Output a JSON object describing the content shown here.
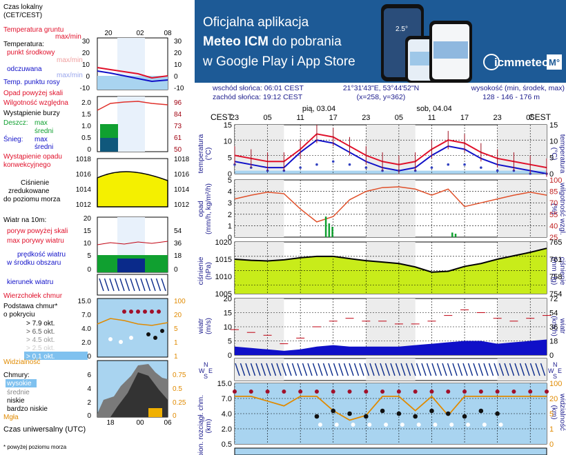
{
  "legend": {
    "czas_lokalny": [
      "Czas lokalny",
      "(CET/CEST)"
    ],
    "top_ticks": [
      "20",
      "02",
      "08"
    ],
    "temp": {
      "grunt": [
        "Temperatura gruntu",
        "max/min"
      ],
      "temperatura": "Temperatura:",
      "punkt": "punkt środkowy",
      "max": "max/min",
      "odczuwana": "odczuwana",
      "max2": "max/min",
      "rosy": "Temp. punktu rosy",
      "yticks": [
        "30",
        "20",
        "10",
        "0",
        "-10"
      ]
    },
    "precip": {
      "opad": "Opad powyżej skali",
      "wilg": "Wilgotność względna",
      "burza": "Wystąpienie burzy",
      "deszcz": "Deszcz:",
      "max": "max",
      "sredni": "średni",
      "snieg": "Śnieg:",
      "max2": "max",
      "sredni2": "średni",
      "konw": [
        "Wystąpienie opadu",
        "konwekcyjnego"
      ],
      "yticks": [
        "2.0",
        "1.5",
        "1.0",
        "0.5",
        "0"
      ],
      "ryticks": [
        "96",
        "84",
        "73",
        "61",
        "50"
      ]
    },
    "pressure": {
      "label": [
        "Ciśnienie",
        "zredukowane",
        "do poziomu morza"
      ],
      "yticks": [
        "1018",
        "1016",
        "1014",
        "1012"
      ]
    },
    "wind": {
      "label": "Wiatr na 10m:",
      "poryw": "poryw powyżej skali",
      "max": "max porywy wiatru",
      "predkosc": [
        "prędkość wiatru",
        "w środku obszaru"
      ],
      "yticks": [
        "20",
        "15",
        "10",
        "5",
        "0"
      ],
      "ryticks": [
        "72",
        "54",
        "36",
        "18",
        "0"
      ]
    },
    "kierunek": "kierunek wiatru",
    "clouds": {
      "wierzcholek": "Wierzchołek chmur",
      "podstawa": [
        "Podstawa chmur*",
        "o pokryciu"
      ],
      "okt": [
        "> 7.9 okt.",
        "> 6.5 okt.",
        "> 4.5 okt.",
        "> 2.5 okt.",
        "> 0.1 okt."
      ],
      "yticks": [
        "15.0",
        "7.0",
        "4.0",
        "2.0",
        "0.5"
      ],
      "ryticks": [
        "100",
        "20",
        "5",
        "1",
        "0"
      ],
      "widzialnosc": "Widzialność",
      "wid_low": "0",
      "wid_top_right": "1"
    },
    "cloudcover": {
      "chmury": "Chmury:",
      "wysokie": "wysokie",
      "srednie": "średnie",
      "niskie": "niskie",
      "bardzo": "bardzo niskie",
      "mgla": "Mgła",
      "yticks": [
        "6",
        "4",
        "2",
        "0"
      ],
      "ryticks": [
        "0.75",
        "0.5",
        "0.25",
        "0"
      ]
    },
    "utc": "Czas uniwersalny (UTC)",
    "utc_ticks": [
      "18",
      "00",
      "06"
    ],
    "footnote": "* powyżej poziomu morza"
  },
  "banner": {
    "line1": "Oficjalna aplikacja",
    "line2_bold": "Meteo ICM",
    "line2_rest": " do pobrania",
    "line3": "w Google Play i App Store",
    "brand": "icmmeteo",
    "brand_badge": "M°",
    "phone_temp": "2.5°"
  },
  "info": {
    "wschod": "wschód słońca: 06:01 CEST",
    "zachod": "zachód słońca: 19:12 CEST",
    "coords": "21°31'43\"E, 53°44'52\"N",
    "grid": "(x=258, y=362)",
    "wys_label": "wysokość (min, środek, max)",
    "wys_vals": "128 - 146 - 176 m"
  },
  "axis": {
    "tz": "CEST",
    "days": [
      "pią, 03.04",
      "sob, 04.04"
    ],
    "hours": [
      "23",
      "05",
      "11",
      "17",
      "23",
      "05",
      "11",
      "17",
      "23",
      "05"
    ]
  },
  "panels": {
    "temp": {
      "left": [
        "temperatura",
        "(°C)"
      ],
      "right": [
        "(°C)",
        "temperatura"
      ],
      "yticks": [
        "15",
        "10",
        "5",
        "0"
      ]
    },
    "precip": {
      "left": [
        "opad",
        "(mm/h, kg/m²/h)"
      ],
      "right": [
        "(%)",
        "wilgotność wzgl."
      ],
      "yticks": [
        "5",
        "4",
        "3",
        "2",
        "1",
        "0"
      ],
      "ryticks": [
        "100",
        "85",
        "70",
        "55",
        "40",
        "25"
      ]
    },
    "pressure": {
      "left": [
        "ciśnienie",
        "(hPa)"
      ],
      "right": [
        "(mm Hg)",
        "ciśnienie"
      ],
      "yticks": [
        "1020",
        "1015",
        "1010",
        "1005"
      ],
      "ryticks": [
        "765",
        "761",
        "758",
        "754"
      ]
    },
    "wind": {
      "left": [
        "wiatr",
        "(m/s)"
      ],
      "right": [
        "(km/h)",
        "wiatr"
      ],
      "yticks": [
        "20",
        "15",
        "10",
        "5",
        "0"
      ],
      "ryticks": [
        "72",
        "54",
        "36",
        "18",
        "0"
      ]
    },
    "dir": {
      "W": "W",
      "N": "N",
      "E": "E",
      "S": "S"
    },
    "clouds": {
      "left": [
        "pion. rozciągł. chm.",
        "(km)"
      ],
      "right": [
        "(km)",
        "widzialność"
      ],
      "yticks": [
        "15.0",
        "7.0",
        "4.0",
        "2.0",
        "0.5"
      ],
      "ryticks": [
        "100",
        "20",
        "5",
        "1",
        "0"
      ]
    }
  },
  "colors": {
    "red": "#e0102a",
    "blue": "#1010c8",
    "navy": "#0a2a8a",
    "yellow": "#f4f000",
    "green": "#10a030",
    "orange": "#e08a00",
    "sky": "#a9d4f0",
    "banner": "#1d5a96"
  },
  "chart_data": [
    {
      "type": "line",
      "title": "temperatura",
      "x": [
        "23",
        "02",
        "05",
        "08",
        "11",
        "14",
        "17",
        "20",
        "23",
        "02",
        "05",
        "08",
        "11",
        "14",
        "17",
        "20",
        "23",
        "02",
        "05",
        "08"
      ],
      "ylim": [
        -1,
        15
      ],
      "series": [
        {
          "name": "punkt środkowy",
          "values": [
            5,
            4,
            3,
            3,
            7,
            12,
            11,
            8,
            5,
            3,
            2,
            3,
            7,
            10,
            9,
            6,
            4,
            3,
            2,
            1
          ]
        },
        {
          "name": "odczuwana",
          "values": [
            3,
            2,
            1,
            1,
            6,
            10,
            9,
            6,
            3,
            1,
            0,
            1,
            5,
            8,
            7,
            4,
            2,
            1,
            0,
            -1
          ]
        },
        {
          "name": "Temp. punktu rosy",
          "values": [
            2,
            1,
            0,
            0,
            1,
            2,
            3,
            2,
            1,
            0,
            0,
            0,
            1,
            2,
            2,
            1,
            0,
            0,
            -1,
            -1
          ]
        }
      ]
    },
    {
      "type": "line",
      "title": "wilgotność wzgl.",
      "x": [
        "23",
        "02",
        "05",
        "08",
        "11",
        "14",
        "17",
        "20",
        "23",
        "02",
        "05",
        "08",
        "11",
        "14",
        "17",
        "20",
        "23",
        "02",
        "05",
        "08"
      ],
      "ylim": [
        25,
        100
      ],
      "series": [
        {
          "name": "wilgotność względna",
          "values": [
            75,
            80,
            84,
            82,
            62,
            45,
            52,
            74,
            85,
            90,
            91,
            88,
            80,
            88,
            65,
            70,
            75,
            80,
            84,
            80
          ]
        }
      ],
      "bars": [
        {
          "name": "opad",
          "x": [
            "17",
            "17",
            "17",
            "14"
          ],
          "values": [
            1.8,
            1.2,
            0.9,
            0.4
          ]
        }
      ]
    },
    {
      "type": "area",
      "title": "ciśnienie",
      "x": [
        "23",
        "02",
        "05",
        "08",
        "11",
        "14",
        "17",
        "20",
        "23",
        "02",
        "05",
        "08",
        "11",
        "14",
        "17",
        "20",
        "23",
        "02",
        "05",
        "08"
      ],
      "ylim": [
        1002,
        1020
      ],
      "values": [
        1014,
        1013.6,
        1013.4,
        1013.8,
        1014.5,
        1015,
        1015,
        1014.2,
        1013.5,
        1013,
        1012.5,
        1011.3,
        1009.5,
        1009.8,
        1011.5,
        1012.5,
        1014,
        1015.2,
        1016.4,
        1017.8
      ]
    },
    {
      "type": "area",
      "title": "wiatr",
      "x": [
        "23",
        "02",
        "05",
        "08",
        "11",
        "14",
        "17",
        "20",
        "23",
        "02",
        "05",
        "08",
        "11",
        "14",
        "17",
        "20",
        "23",
        "02",
        "05",
        "08"
      ],
      "ylim": [
        0,
        20
      ],
      "series": [
        {
          "name": "prędkość wiatru",
          "values": [
            3,
            2.5,
            2,
            1.5,
            2,
            3,
            3.5,
            3,
            3,
            3,
            3,
            3.5,
            4,
            4.5,
            5,
            5,
            4,
            4.5,
            5,
            5.5
          ]
        },
        {
          "name": "max porywy wiatru",
          "values": [
            9,
            8,
            7,
            4,
            6,
            10,
            12,
            13,
            12,
            12,
            11,
            11,
            12,
            14,
            16,
            15,
            13,
            12,
            13,
            14
          ]
        }
      ]
    },
    {
      "type": "line",
      "title": "widzialność",
      "x": [
        "23",
        "02",
        "05",
        "08",
        "11",
        "14",
        "17",
        "20",
        "23",
        "02",
        "05",
        "08",
        "11",
        "14",
        "17",
        "20",
        "23",
        "02",
        "05",
        "08"
      ],
      "ylim": [
        0,
        100
      ],
      "values": [
        20,
        20,
        18,
        16,
        20,
        20,
        14,
        10,
        12,
        20,
        20,
        14,
        20,
        12,
        20,
        20,
        20,
        20,
        20,
        20
      ]
    }
  ]
}
